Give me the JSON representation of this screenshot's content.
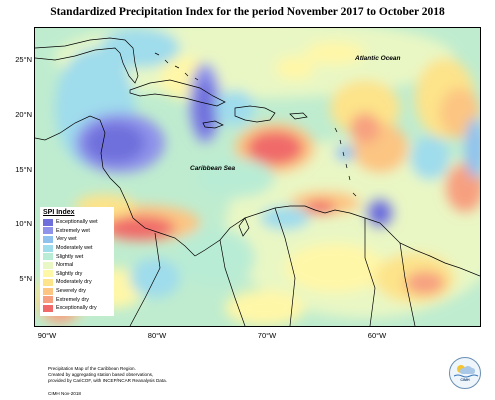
{
  "title": "Standardized Precipitation Index for the period November 2017 to October 2018",
  "map": {
    "lat_labels": [
      "25°N",
      "20°N",
      "15°N",
      "10°N",
      "5°N"
    ],
    "lon_labels": [
      "90°W",
      "80°W",
      "70°W",
      "60°W"
    ],
    "labels": {
      "atlantic": "Atlantic Ocean",
      "caribbean": "Caribbean Sea"
    }
  },
  "legend": {
    "title": "SPI Index",
    "items": [
      {
        "label": "Exceptionally wet",
        "color": "#6f6fdc"
      },
      {
        "label": "Extremely wet",
        "color": "#8f93ea"
      },
      {
        "label": "Very wet",
        "color": "#8fc1ef"
      },
      {
        "label": "Moderately wet",
        "color": "#9fdcec"
      },
      {
        "label": "Slightly wet",
        "color": "#b9ecd4"
      },
      {
        "label": "Normal",
        "color": "#e9f7c4"
      },
      {
        "label": "Slightly dry",
        "color": "#fff7a8"
      },
      {
        "label": "Moderately dry",
        "color": "#fde38a"
      },
      {
        "label": "Severely dry",
        "color": "#fcc582"
      },
      {
        "label": "Extremely dry",
        "color": "#f7a080"
      },
      {
        "label": "Exceptionally dry",
        "color": "#f06a6a"
      }
    ]
  },
  "footer": {
    "line1": "Precipitation Map of the Caribbean Region.",
    "line2": "Created by aggregating station based observations,",
    "line3": "provided by CariCOF, with INCEP/NCAR Reanalysis Data.",
    "credit": "CIMH Nov-2018"
  },
  "logo": {
    "text": "CIMH"
  }
}
